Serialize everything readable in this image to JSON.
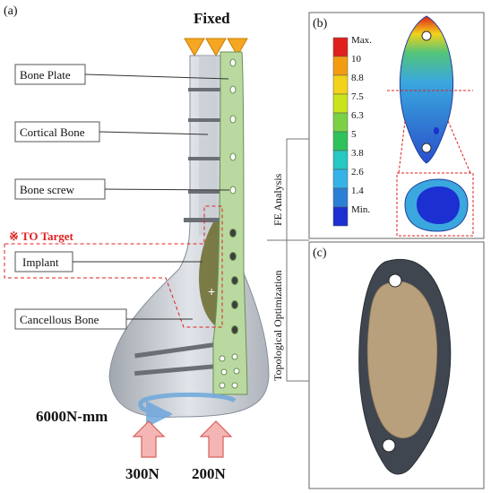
{
  "panel_a": {
    "tag": "(a)",
    "fixed_label": "Fixed",
    "labels": {
      "bone_plate": "Bone Plate",
      "cortical_bone": "Cortical Bone",
      "bone_screw": "Bone screw",
      "to_target": "※ TO Target",
      "implant": "Implant",
      "cancellous_bone": "Cancellous Bone"
    },
    "loads": {
      "moment": "6000N-mm",
      "force_left": "300N",
      "force_right": "200N"
    }
  },
  "side_labels": {
    "fe_analysis": "FE Analysis",
    "topological_optimization": "Topological Optimization"
  },
  "panel_b": {
    "tag": "(b)",
    "legend": [
      "Max.",
      "10",
      "8.8",
      "7.5",
      "6.3",
      "5",
      "3.8",
      "2.6",
      "1.4",
      "Min."
    ],
    "legend_colors": [
      "#e0201c",
      "#f39c12",
      "#f2d31a",
      "#c9e31c",
      "#7ad144",
      "#2fc25b",
      "#27c7c2",
      "#35b3e8",
      "#2b7fd6",
      "#1c2fd1"
    ]
  },
  "panel_c": {
    "tag": "(c)"
  },
  "colors": {
    "red_accent": "#e02020",
    "plate_green": "#b9d9a0",
    "fixed_triangle": "#f5a623",
    "arrow_pink": "#f4b6b4"
  }
}
